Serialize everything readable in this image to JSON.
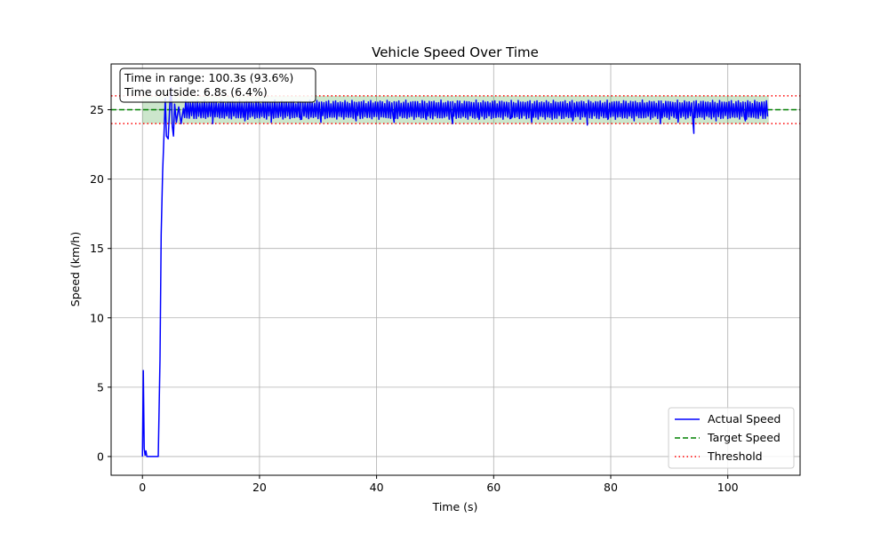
{
  "chart_data": {
    "type": "line",
    "title": "Vehicle Speed Over Time",
    "xlabel": "Time (s)",
    "ylabel": "Speed (km/h)",
    "xlim": [
      -5.35,
      112.35
    ],
    "ylim": [
      -1.35,
      28.3
    ],
    "xticks": [
      0,
      20,
      40,
      60,
      80,
      100
    ],
    "yticks": [
      0,
      5,
      10,
      15,
      20,
      25
    ],
    "grid": true,
    "legend_position": "lower-right",
    "target_speed": 25,
    "thresholds": [
      24,
      26
    ],
    "in_range_band": {
      "y": [
        24,
        26
      ],
      "x": [
        0,
        107
      ]
    },
    "annotation": {
      "line1": "Time in range: 100.3s (93.6%)",
      "line2": "Time outside: 6.8s (6.4%)",
      "position": "top-left"
    },
    "series": [
      {
        "name": "Actual Speed",
        "color": "#0000ff",
        "style": "solid",
        "points": [
          [
            0,
            0
          ],
          [
            0.15,
            6.2
          ],
          [
            0.3,
            0.6
          ],
          [
            0.45,
            0.1
          ],
          [
            0.6,
            0.4
          ],
          [
            0.75,
            0
          ],
          [
            1.0,
            0
          ],
          [
            2.7,
            0
          ],
          [
            3.0,
            7
          ],
          [
            3.2,
            16
          ],
          [
            3.45,
            20.5
          ],
          [
            3.7,
            23.4
          ],
          [
            3.9,
            25.8
          ],
          [
            4.1,
            23.1
          ],
          [
            4.4,
            22.9
          ],
          [
            4.7,
            25.6
          ],
          [
            4.9,
            26.6
          ],
          [
            5.1,
            23.8
          ],
          [
            5.3,
            23.1
          ],
          [
            5.5,
            25.4
          ],
          [
            5.8,
            24.1
          ],
          [
            6.2,
            25.2
          ],
          [
            6.6,
            24.0
          ],
          [
            7.0,
            25.1
          ]
        ],
        "oscillation": {
          "t_start": 7.0,
          "t_end": 107.0,
          "center": 25.0,
          "amplitude": 0.7,
          "period_s": 0.4
        },
        "dips": [
          [
            12.0,
            24.0
          ],
          [
            17.5,
            24.2
          ],
          [
            22.0,
            24.1
          ],
          [
            27.0,
            24.3
          ],
          [
            30.5,
            24.1
          ],
          [
            36.5,
            24.2
          ],
          [
            43.0,
            24.1
          ],
          [
            48.5,
            24.3
          ],
          [
            53.0,
            24.0
          ],
          [
            57.5,
            24.3
          ],
          [
            63.0,
            24.4
          ],
          [
            66.5,
            24.1
          ],
          [
            70.0,
            24.3
          ],
          [
            73.5,
            24.2
          ],
          [
            76.0,
            23.9
          ],
          [
            79.5,
            24.3
          ],
          [
            84.0,
            24.2
          ],
          [
            88.5,
            24.0
          ],
          [
            91.5,
            24.1
          ],
          [
            94.2,
            23.3
          ],
          [
            98.0,
            24.2
          ],
          [
            103.0,
            24.2
          ]
        ]
      },
      {
        "name": "Target Speed",
        "color": "#008000",
        "style": "dashed"
      },
      {
        "name": "Threshold",
        "color": "#ff0000",
        "style": "dotted"
      }
    ]
  }
}
